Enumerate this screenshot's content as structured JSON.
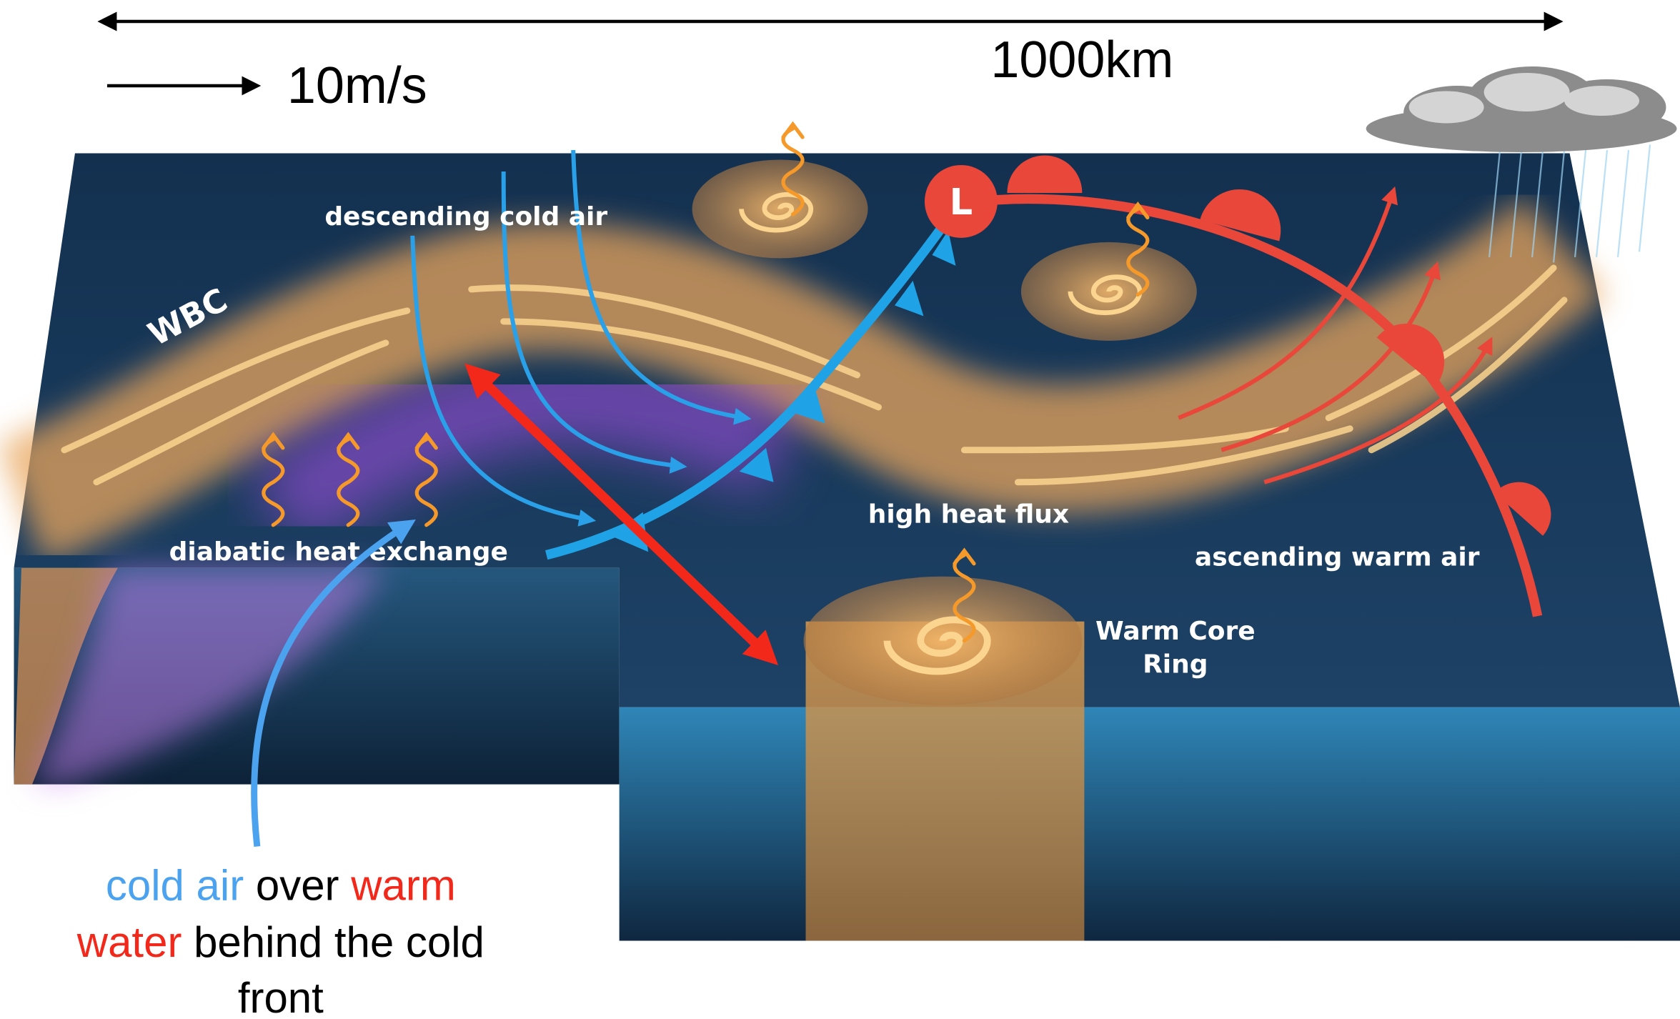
{
  "scale_bar": {
    "length": "1000km",
    "speed": "10m/s"
  },
  "labels": {
    "descending": "descending cold air",
    "wbc": "WBC",
    "diabatic": "diabatic heat exchange",
    "heat_flux": "high heat flux",
    "ascending": "ascending warm air",
    "ring": [
      "Warm Core",
      "Ring"
    ],
    "low": "L"
  },
  "caption": {
    "lines": [
      [
        "cold air",
        " over ",
        "warm"
      ],
      [
        "water",
        " behind the cold"
      ],
      [
        "front"
      ]
    ]
  }
}
